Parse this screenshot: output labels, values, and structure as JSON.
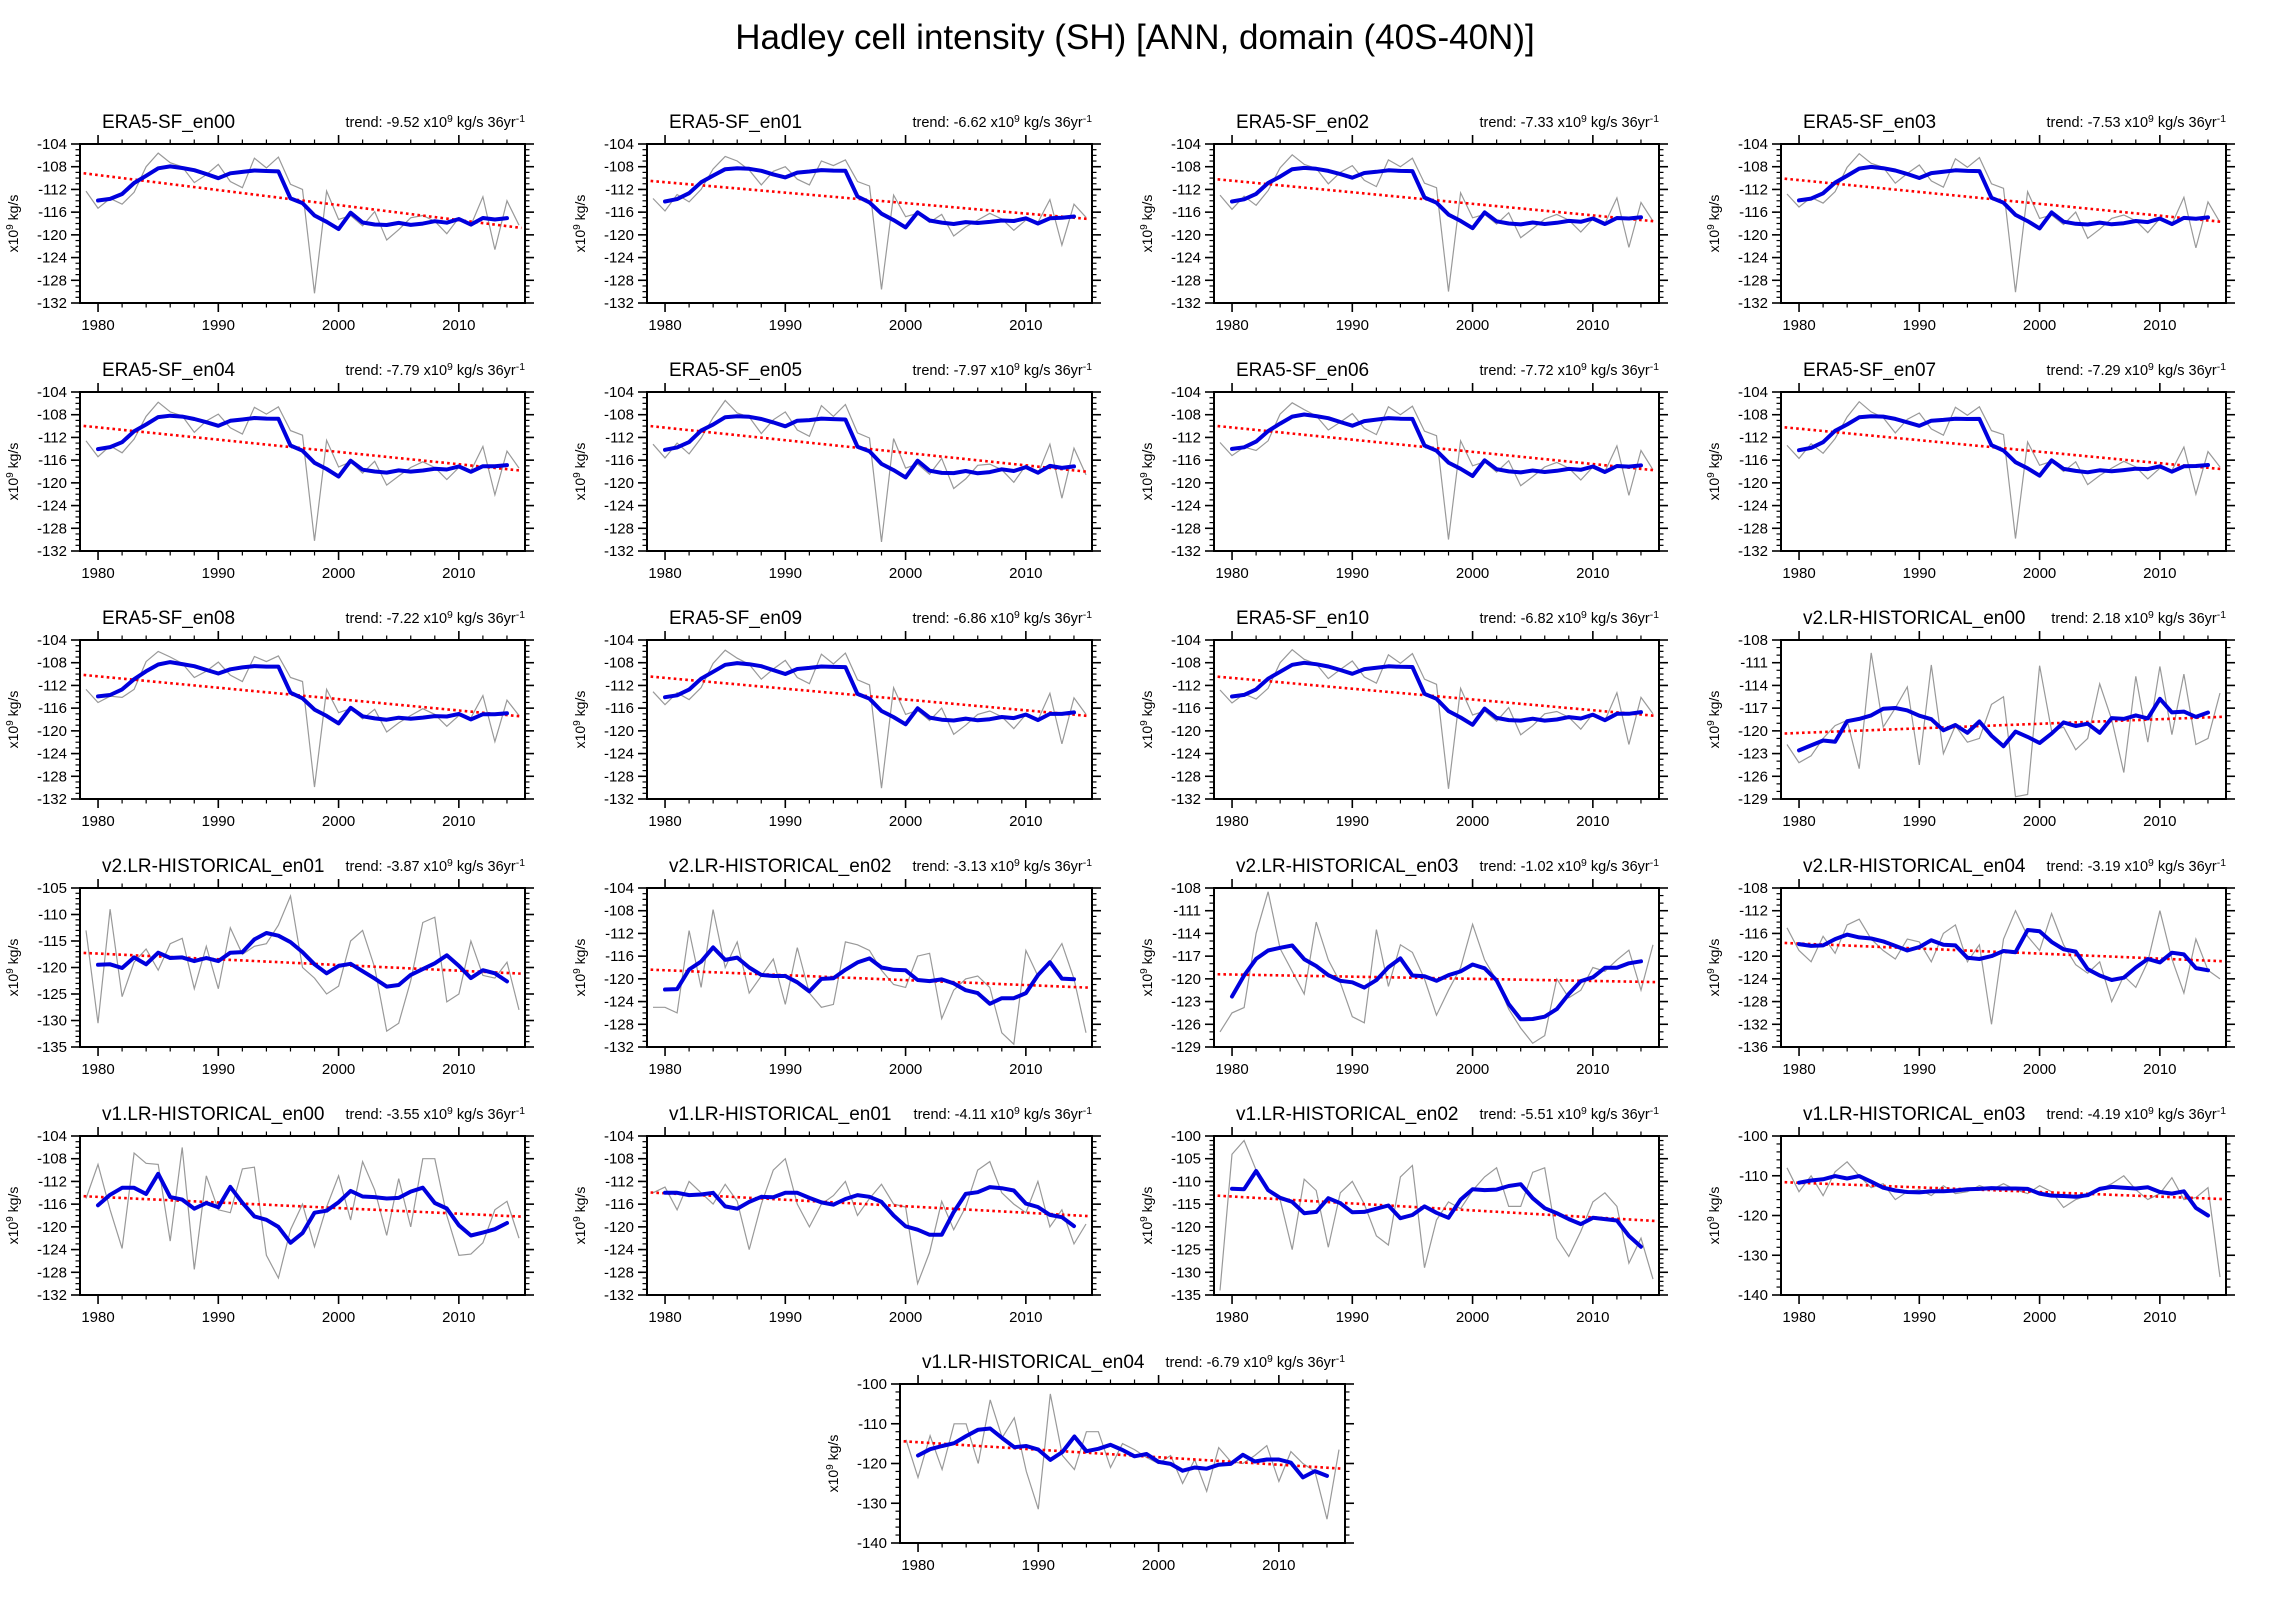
{
  "page_title": "Hadley cell intensity (SH) [ANN, domain (40S-40N)]",
  "colors": {
    "annual_line": "#999999",
    "smooth_line": "#0000dd",
    "trend_line": "#ff0000",
    "axis": "#000000"
  },
  "labels": {
    "ylabel_parts": {
      "x10": "x10",
      "exp": "9",
      "unit": " kg/s"
    },
    "trend_parts": {
      "prefix": "trend: ",
      "x10": " x10",
      "exp": "9",
      "unit": " kg/s 36yr",
      "exp2": "-1"
    }
  },
  "chart_data": {
    "type": "line",
    "x": {
      "start_year": 1979,
      "end_year": 2015,
      "ticks": [
        1980,
        1990,
        2000,
        2010
      ],
      "minor_step": 2
    },
    "smoothing": "5-year running mean (blue)",
    "annual_series": "yearly values (gray)",
    "trend_series": "linear trend over 36yr (red dotted)",
    "panels": [
      {
        "type": "line",
        "title": "ERA5-SF_en00",
        "trend": "-9.52",
        "ylim": [
          -132,
          -104
        ],
        "ytick_step": 4,
        "ytick_minor": 1,
        "annual": [
          -112.3,
          -115.3,
          -113.6,
          -114.6,
          -112.5,
          -108.0,
          -105.6,
          -107.3,
          -108.0,
          -110.8,
          -109.4,
          -107.6,
          -110.6,
          -111.7,
          -106.5,
          -108.2,
          -106.3,
          -111.1,
          -112.0,
          -130.3,
          -112.3,
          -117.3,
          -116.6,
          -118.4,
          -115.9,
          -120.9,
          -119.1,
          -117.0,
          -116.6,
          -117.6,
          -119.8,
          -117.0,
          -118.3,
          -113.3,
          -122.6,
          -114.0,
          -118.3
        ]
      },
      {
        "type": "line",
        "title": "ERA5-SF_en01",
        "trend": "-6.62",
        "ylim": [
          -132,
          -104
        ],
        "ytick_step": 4,
        "ytick_minor": 1,
        "annual": [
          -113.6,
          -115.8,
          -112.9,
          -114.2,
          -112.0,
          -108.4,
          -106.2,
          -107.0,
          -108.6,
          -111.2,
          -108.8,
          -108.0,
          -110.2,
          -111.2,
          -107.0,
          -107.8,
          -106.8,
          -110.6,
          -111.4,
          -129.6,
          -113.0,
          -116.8,
          -116.2,
          -117.8,
          -116.4,
          -120.2,
          -118.6,
          -117.4,
          -116.2,
          -117.2,
          -119.2,
          -117.4,
          -117.8,
          -113.8,
          -121.8,
          -114.6,
          -116.9
        ]
      },
      {
        "type": "line",
        "title": "ERA5-SF_en02",
        "trend": "-7.33",
        "ylim": [
          -132,
          -104
        ],
        "ytick_step": 4,
        "ytick_minor": 1,
        "annual": [
          -113.0,
          -115.5,
          -113.2,
          -114.8,
          -112.2,
          -108.2,
          -105.9,
          -107.6,
          -108.3,
          -111.0,
          -109.0,
          -107.8,
          -110.4,
          -111.5,
          -106.8,
          -108.0,
          -106.5,
          -110.9,
          -111.7,
          -130.0,
          -112.6,
          -117.0,
          -116.4,
          -118.1,
          -116.1,
          -120.5,
          -118.9,
          -117.2,
          -116.4,
          -117.4,
          -119.5,
          -117.2,
          -118.0,
          -113.5,
          -122.2,
          -114.3,
          -117.6
        ]
      },
      {
        "type": "line",
        "title": "ERA5-SF_en03",
        "trend": "-7.53",
        "ylim": [
          -132,
          -104
        ],
        "ytick_step": 4,
        "ytick_minor": 1,
        "annual": [
          -112.8,
          -115.1,
          -113.4,
          -114.4,
          -112.4,
          -108.1,
          -105.7,
          -107.4,
          -108.1,
          -110.9,
          -109.2,
          -107.7,
          -110.5,
          -111.6,
          -106.6,
          -108.1,
          -106.4,
          -111.0,
          -111.8,
          -130.1,
          -112.4,
          -117.1,
          -116.5,
          -118.2,
          -116.0,
          -120.6,
          -119.0,
          -117.1,
          -116.5,
          -117.5,
          -119.6,
          -117.1,
          -118.1,
          -113.4,
          -122.3,
          -114.2,
          -117.8
        ]
      },
      {
        "type": "line",
        "title": "ERA5-SF_en04",
        "trend": "-7.79",
        "ylim": [
          -132,
          -104
        ],
        "ytick_step": 4,
        "ytick_minor": 1,
        "annual": [
          -112.6,
          -115.4,
          -113.5,
          -114.7,
          -112.3,
          -108.3,
          -105.8,
          -107.5,
          -108.2,
          -111.1,
          -109.1,
          -107.9,
          -110.3,
          -111.4,
          -106.7,
          -107.9,
          -106.6,
          -110.8,
          -111.6,
          -130.2,
          -112.5,
          -117.2,
          -116.3,
          -118.3,
          -116.2,
          -120.4,
          -118.8,
          -117.3,
          -116.3,
          -117.3,
          -119.4,
          -117.3,
          -117.9,
          -113.6,
          -122.1,
          -114.4,
          -117.4
        ]
      },
      {
        "type": "line",
        "title": "ERA5-SF_en05",
        "trend": "-7.97",
        "ylim": [
          -132,
          -104
        ],
        "ytick_step": 4,
        "ytick_minor": 1,
        "annual": [
          -113.2,
          -115.6,
          -113.0,
          -114.9,
          -112.1,
          -108.5,
          -105.5,
          -107.7,
          -108.4,
          -111.3,
          -108.9,
          -107.5,
          -110.7,
          -111.8,
          -106.4,
          -108.3,
          -106.2,
          -111.2,
          -112.1,
          -130.4,
          -112.2,
          -117.4,
          -116.7,
          -118.5,
          -115.7,
          -121.0,
          -119.3,
          -116.9,
          -116.7,
          -117.7,
          -119.9,
          -116.9,
          -118.4,
          -113.2,
          -122.7,
          -113.9,
          -118.6
        ]
      },
      {
        "type": "line",
        "title": "ERA5-SF_en06",
        "trend": "-7.72",
        "ylim": [
          -132,
          -104
        ],
        "ytick_step": 4,
        "ytick_minor": 1,
        "annual": [
          -112.9,
          -115.2,
          -113.7,
          -114.3,
          -112.6,
          -107.9,
          -105.9,
          -107.1,
          -108.2,
          -110.7,
          -109.3,
          -107.8,
          -110.4,
          -111.5,
          -106.6,
          -108.0,
          -106.5,
          -110.9,
          -111.7,
          -130.0,
          -112.6,
          -117.0,
          -116.3,
          -118.1,
          -116.1,
          -120.5,
          -118.9,
          -117.2,
          -116.4,
          -117.4,
          -119.5,
          -117.2,
          -118.0,
          -113.5,
          -122.2,
          -114.3,
          -117.7
        ]
      },
      {
        "type": "line",
        "title": "ERA5-SF_en07",
        "trend": "-7.29",
        "ylim": [
          -132,
          -104
        ],
        "ytick_step": 4,
        "ytick_minor": 1,
        "annual": [
          -113.4,
          -115.7,
          -113.1,
          -114.8,
          -112.2,
          -108.4,
          -105.7,
          -107.5,
          -108.5,
          -111.2,
          -108.8,
          -107.7,
          -110.5,
          -111.6,
          -106.7,
          -108.1,
          -106.6,
          -110.8,
          -111.5,
          -129.8,
          -112.8,
          -116.9,
          -116.2,
          -118.0,
          -116.3,
          -120.3,
          -118.7,
          -117.4,
          -116.2,
          -117.2,
          -119.3,
          -117.4,
          -117.8,
          -113.7,
          -122.0,
          -114.5,
          -117.2
        ]
      },
      {
        "type": "line",
        "title": "ERA5-SF_en08",
        "trend": "-7.22",
        "ylim": [
          -132,
          -104
        ],
        "ytick_step": 4,
        "ytick_minor": 1,
        "annual": [
          -112.7,
          -115.0,
          -113.9,
          -114.1,
          -112.7,
          -107.8,
          -106.0,
          -107.0,
          -108.1,
          -110.6,
          -109.5,
          -107.9,
          -110.2,
          -111.3,
          -106.9,
          -107.8,
          -106.8,
          -110.6,
          -111.3,
          -129.9,
          -112.7,
          -116.8,
          -116.1,
          -117.9,
          -116.2,
          -120.2,
          -118.6,
          -117.3,
          -116.1,
          -117.1,
          -119.2,
          -117.3,
          -117.7,
          -113.8,
          -121.9,
          -114.6,
          -117.3
        ]
      },
      {
        "type": "line",
        "title": "ERA5-SF_en09",
        "trend": "-6.86",
        "ylim": [
          -132,
          -104
        ],
        "ytick_step": 4,
        "ytick_minor": 1,
        "annual": [
          -113.1,
          -115.4,
          -113.3,
          -114.5,
          -112.4,
          -108.1,
          -105.8,
          -107.2,
          -108.3,
          -110.9,
          -109.1,
          -107.6,
          -110.6,
          -111.7,
          -106.5,
          -108.2,
          -106.3,
          -111.0,
          -111.9,
          -130.1,
          -112.4,
          -117.1,
          -116.4,
          -118.2,
          -116.0,
          -120.6,
          -119.0,
          -117.1,
          -116.5,
          -117.5,
          -119.6,
          -117.1,
          -118.1,
          -113.4,
          -122.3,
          -114.2,
          -117.1
        ]
      },
      {
        "type": "line",
        "title": "ERA5-SF_en10",
        "trend": "-6.82",
        "ylim": [
          -132,
          -104
        ],
        "ytick_step": 4,
        "ytick_minor": 1,
        "annual": [
          -112.8,
          -115.1,
          -113.5,
          -114.4,
          -112.5,
          -108.0,
          -105.7,
          -107.4,
          -108.2,
          -110.8,
          -109.2,
          -107.7,
          -110.5,
          -111.6,
          -106.6,
          -108.1,
          -106.4,
          -110.9,
          -111.8,
          -130.2,
          -112.5,
          -117.2,
          -116.5,
          -118.3,
          -115.9,
          -120.7,
          -119.1,
          -117.0,
          -116.6,
          -117.6,
          -119.7,
          -117.0,
          -118.2,
          -113.3,
          -122.4,
          -114.1,
          -117.0
        ]
      },
      {
        "type": "line",
        "title": "v2.LR-HISTORICAL_en00",
        "trend": "2.18",
        "ylim": [
          -129,
          -108
        ],
        "ytick_step": 3,
        "ytick_minor": 1,
        "annual": [
          -121.8,
          -124.2,
          -123.3,
          -121.0,
          -119.3,
          -118.6,
          -125.0,
          -109.7,
          -119.5,
          -117.0,
          -114.2,
          -124.5,
          -111.3,
          -123.0,
          -119.3,
          -121.5,
          -121.0,
          -116.5,
          -115.5,
          -128.7,
          -128.4,
          -111.4,
          -120.0,
          -119.5,
          -122.5,
          -121.0,
          -113.8,
          -118.5,
          -125.5,
          -112.8,
          -121.5,
          -111.5,
          -120.5,
          -112.5,
          -121.8,
          -121.0,
          -115.0
        ]
      },
      {
        "type": "line",
        "title": "v2.LR-HISTORICAL_en01",
        "trend": "-3.87",
        "ylim": [
          -135,
          -105
        ],
        "ytick_step": 5,
        "ytick_minor": 1,
        "annual": [
          -113.0,
          -130.5,
          -109.0,
          -125.5,
          -119.0,
          -116.5,
          -120.5,
          -115.5,
          -114.5,
          -124.0,
          -116.0,
          -124.0,
          -112.5,
          -117.5,
          -116.0,
          -115.5,
          -112.0,
          -106.5,
          -120.0,
          -122.0,
          -125.0,
          -123.5,
          -115.0,
          -113.0,
          -120.0,
          -132.0,
          -130.5,
          -122.5,
          -111.5,
          -110.5,
          -126.5,
          -125.0,
          -115.0,
          -121.5,
          -122.0,
          -119.0,
          -128.0
        ]
      },
      {
        "type": "line",
        "title": "v2.LR-HISTORICAL_en02",
        "trend": "-3.13",
        "ylim": [
          -132,
          -104
        ],
        "ytick_step": 4,
        "ytick_minor": 1,
        "annual": [
          -125.0,
          -125.0,
          -126.0,
          -111.5,
          -121.5,
          -107.8,
          -118.0,
          -113.5,
          -122.5,
          -119.5,
          -116.5,
          -124.5,
          -114.5,
          -122.5,
          -125.0,
          -124.5,
          -113.5,
          -114.0,
          -115.0,
          -118.5,
          -121.0,
          -121.5,
          -116.0,
          -115.5,
          -127.0,
          -122.0,
          -120.0,
          -119.5,
          -121.5,
          -129.5,
          -131.5,
          -115.0,
          -119.5,
          -117.0,
          -113.8,
          -120.0,
          -129.5
        ]
      },
      {
        "type": "line",
        "title": "v2.LR-HISTORICAL_en03",
        "trend": "-1.02",
        "ylim": [
          -129,
          -108
        ],
        "ytick_step": 3,
        "ytick_minor": 1,
        "annual": [
          -127.0,
          -124.5,
          -123.8,
          -114.0,
          -108.5,
          -116.0,
          -119.0,
          -122.0,
          -112.5,
          -117.5,
          -120.5,
          -125.0,
          -125.8,
          -113.5,
          -121.0,
          -115.5,
          -116.5,
          -120.0,
          -124.8,
          -121.5,
          -118.5,
          -112.8,
          -117.5,
          -120.2,
          -124.0,
          -126.5,
          -128.5,
          -127.5,
          -120.0,
          -122.5,
          -121.5,
          -118.5,
          -119.0,
          -117.5,
          -116.2,
          -121.5,
          -115.5
        ]
      },
      {
        "type": "line",
        "title": "v2.LR-HISTORICAL_en04",
        "trend": "-3.19",
        "ylim": [
          -136,
          -108
        ],
        "ytick_step": 4,
        "ytick_minor": 1,
        "annual": [
          -115.0,
          -119.0,
          -121.0,
          -116.5,
          -119.5,
          -114.5,
          -113.5,
          -117.0,
          -119.0,
          -120.5,
          -117.0,
          -117.5,
          -121.0,
          -116.0,
          -114.5,
          -121.0,
          -118.0,
          -132.0,
          -117.0,
          -112.0,
          -116.5,
          -119.0,
          -112.5,
          -118.0,
          -121.5,
          -123.0,
          -121.0,
          -128.0,
          -123.5,
          -125.5,
          -121.0,
          -112.0,
          -120.5,
          -126.5,
          -117.0,
          -122.5,
          -124.0
        ]
      },
      {
        "type": "line",
        "title": "v1.LR-HISTORICAL_en00",
        "trend": "-3.55",
        "ylim": [
          -132,
          -104
        ],
        "ytick_step": 4,
        "ytick_minor": 1,
        "annual": [
          -115.0,
          -109.0,
          -117.0,
          -123.8,
          -107.0,
          -108.8,
          -109.0,
          -122.5,
          -106.0,
          -127.5,
          -111.0,
          -117.0,
          -117.5,
          -109.8,
          -109.5,
          -125.0,
          -129.0,
          -120.5,
          -116.0,
          -123.5,
          -116.5,
          -111.0,
          -118.8,
          -108.5,
          -113.5,
          -121.5,
          -111.5,
          -120.0,
          -108.0,
          -108.0,
          -118.0,
          -125.0,
          -124.8,
          -122.8,
          -117.0,
          -115.5,
          -122.0
        ]
      },
      {
        "type": "line",
        "title": "v1.LR-HISTORICAL_en01",
        "trend": "-4.11",
        "ylim": [
          -132,
          -104
        ],
        "ytick_step": 4,
        "ytick_minor": 1,
        "annual": [
          -114.0,
          -113.0,
          -117.0,
          -112.0,
          -114.0,
          -116.0,
          -112.5,
          -115.5,
          -124.0,
          -116.0,
          -110.0,
          -108.0,
          -116.0,
          -120.0,
          -116.0,
          -114.5,
          -112.0,
          -118.0,
          -115.0,
          -112.5,
          -116.0,
          -116.5,
          -130.0,
          -124.5,
          -115.5,
          -120.5,
          -116.5,
          -110.0,
          -108.5,
          -114.0,
          -116.0,
          -117.5,
          -112.0,
          -120.0,
          -117.0,
          -123.0,
          -119.5
        ]
      },
      {
        "type": "line",
        "title": "v1.LR-HISTORICAL_en02",
        "trend": "-5.51",
        "ylim": [
          -135,
          -100
        ],
        "ytick_step": 5,
        "ytick_minor": 1,
        "annual": [
          -134.0,
          -104.0,
          -101.0,
          -107.5,
          -112.0,
          -114.0,
          -125.0,
          -109.5,
          -112.0,
          -124.5,
          -112.5,
          -110.0,
          -115.0,
          -122.0,
          -124.0,
          -109.0,
          -106.5,
          -129.0,
          -118.5,
          -114.5,
          -116.0,
          -112.0,
          -109.0,
          -107.0,
          -115.5,
          -115.5,
          -108.0,
          -107.0,
          -122.5,
          -126.5,
          -121.0,
          -114.5,
          -112.5,
          -115.5,
          -128.0,
          -122.5,
          -131.5
        ]
      },
      {
        "type": "line",
        "title": "v1.LR-HISTORICAL_en03",
        "trend": "-4.19",
        "ylim": [
          -140,
          -100
        ],
        "ytick_step": 10,
        "ytick_minor": 2,
        "annual": [
          -108.0,
          -114.0,
          -110.0,
          -115.0,
          -109.0,
          -106.5,
          -110.0,
          -113.0,
          -112.0,
          -116.0,
          -114.0,
          -113.5,
          -115.0,
          -112.5,
          -114.5,
          -114.0,
          -112.5,
          -113.5,
          -112.0,
          -113.5,
          -114.5,
          -112.5,
          -114.0,
          -118.0,
          -116.0,
          -115.0,
          -113.5,
          -112.0,
          -110.0,
          -113.5,
          -116.0,
          -114.5,
          -110.5,
          -116.0,
          -115.5,
          -113.0,
          -135.5
        ]
      },
      {
        "type": "line",
        "title": "v1.LR-HISTORICAL_en04",
        "trend": "-6.79",
        "ylim": [
          -140,
          -100
        ],
        "ytick_step": 10,
        "ytick_minor": 2,
        "annual": [
          -114.0,
          -123.5,
          -113.0,
          -121.5,
          -110.0,
          -110.0,
          -120.0,
          -104.0,
          -113.5,
          -108.5,
          -122.0,
          -131.5,
          -102.5,
          -118.0,
          -121.5,
          -112.0,
          -112.0,
          -121.0,
          -115.0,
          -116.5,
          -118.5,
          -120.0,
          -118.0,
          -125.0,
          -119.0,
          -127.0,
          -116.0,
          -119.5,
          -120.0,
          -118.0,
          -115.5,
          -124.5,
          -117.0,
          -120.0,
          -122.0,
          -134.0,
          -116.5
        ]
      }
    ]
  }
}
